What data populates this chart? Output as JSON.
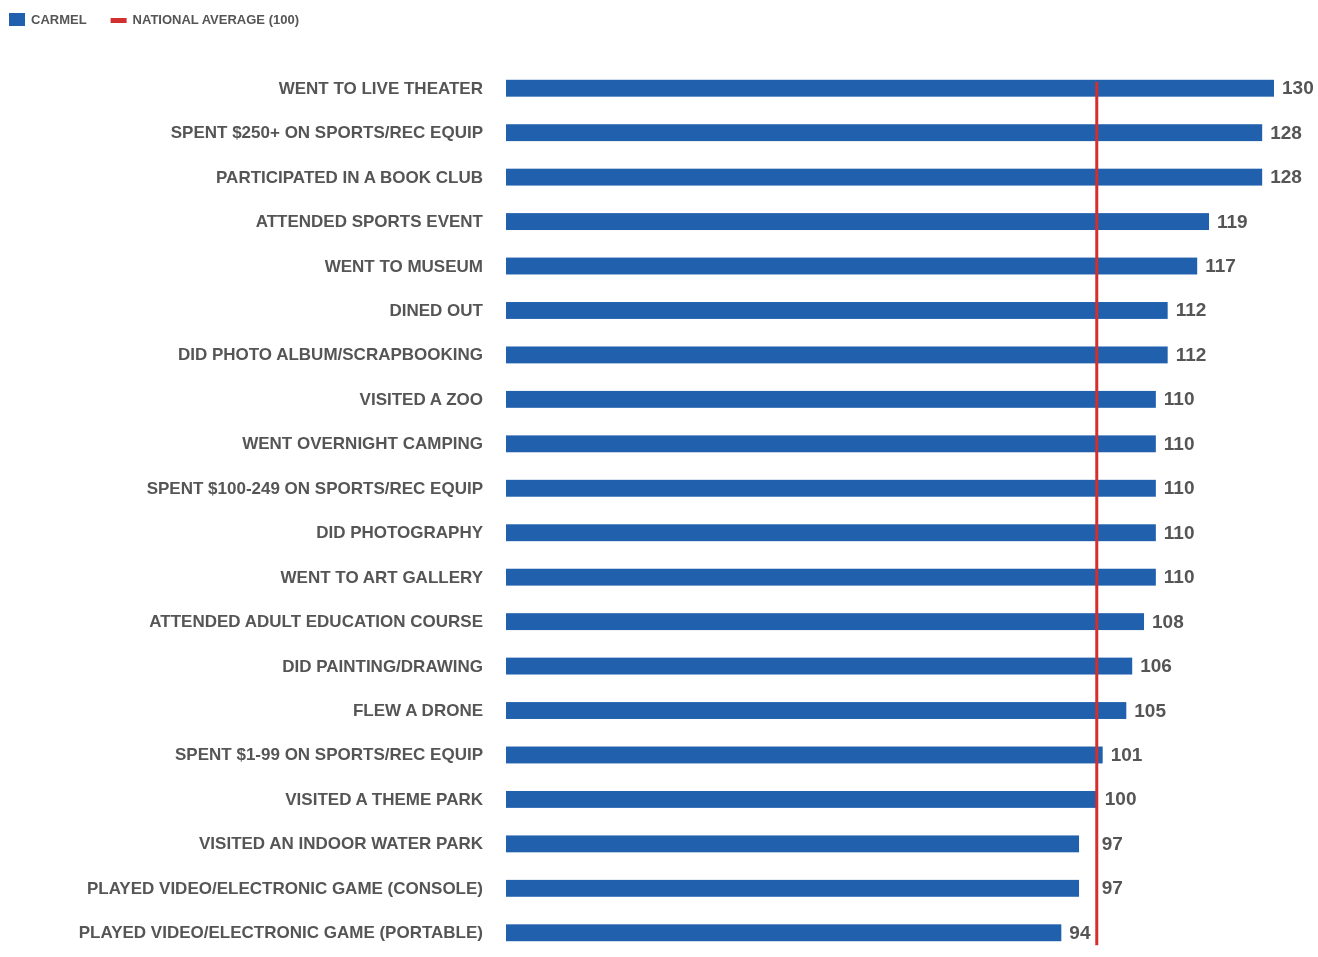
{
  "chart_data": {
    "type": "bar",
    "orientation": "horizontal",
    "categories": [
      "WENT TO LIVE THEATER",
      "SPENT  $250+ ON SPORTS/REC EQUIP",
      "PARTICIPATED IN A BOOK CLUB",
      "ATTENDED SPORTS EVENT",
      "WENT TO MUSEUM",
      "DINED OUT",
      "DID PHOTO ALBUM/SCRAPBOOKING",
      "VISITED A ZOO",
      "WENT OVERNIGHT CAMPING",
      "SPENT $100-249 ON SPORTS/REC EQUIP",
      "DID PHOTOGRAPHY",
      "WENT TO ART GALLERY",
      "ATTENDED ADULT EDUCATION COURSE",
      "DID PAINTING/DRAWING",
      "FLEW A DRONE",
      "SPENT  $1-99 ON SPORTS/REC EQUIP",
      "VISITED A THEME PARK",
      "VISITED AN INDOOR WATER PARK",
      "PLAYED VIDEO/ELECTRONIC GAME (CONSOLE)",
      "PLAYED VIDEO/ELECTRONIC GAME (PORTABLE)"
    ],
    "series": [
      {
        "name": "CARMEL",
        "color": "#2160ad",
        "values": [
          130,
          128,
          128,
          119,
          117,
          112,
          112,
          110,
          110,
          110,
          110,
          110,
          108,
          106,
          105,
          101,
          100,
          97,
          97,
          94
        ]
      }
    ],
    "tick_labels": "y",
    "ref_lines": [
      {
        "axis": "x",
        "value": 100,
        "label": "NATIONAL AVERAGE (100)",
        "color": "#d32f2f"
      }
    ],
    "data_labels": true,
    "legend": "top left"
  }
}
